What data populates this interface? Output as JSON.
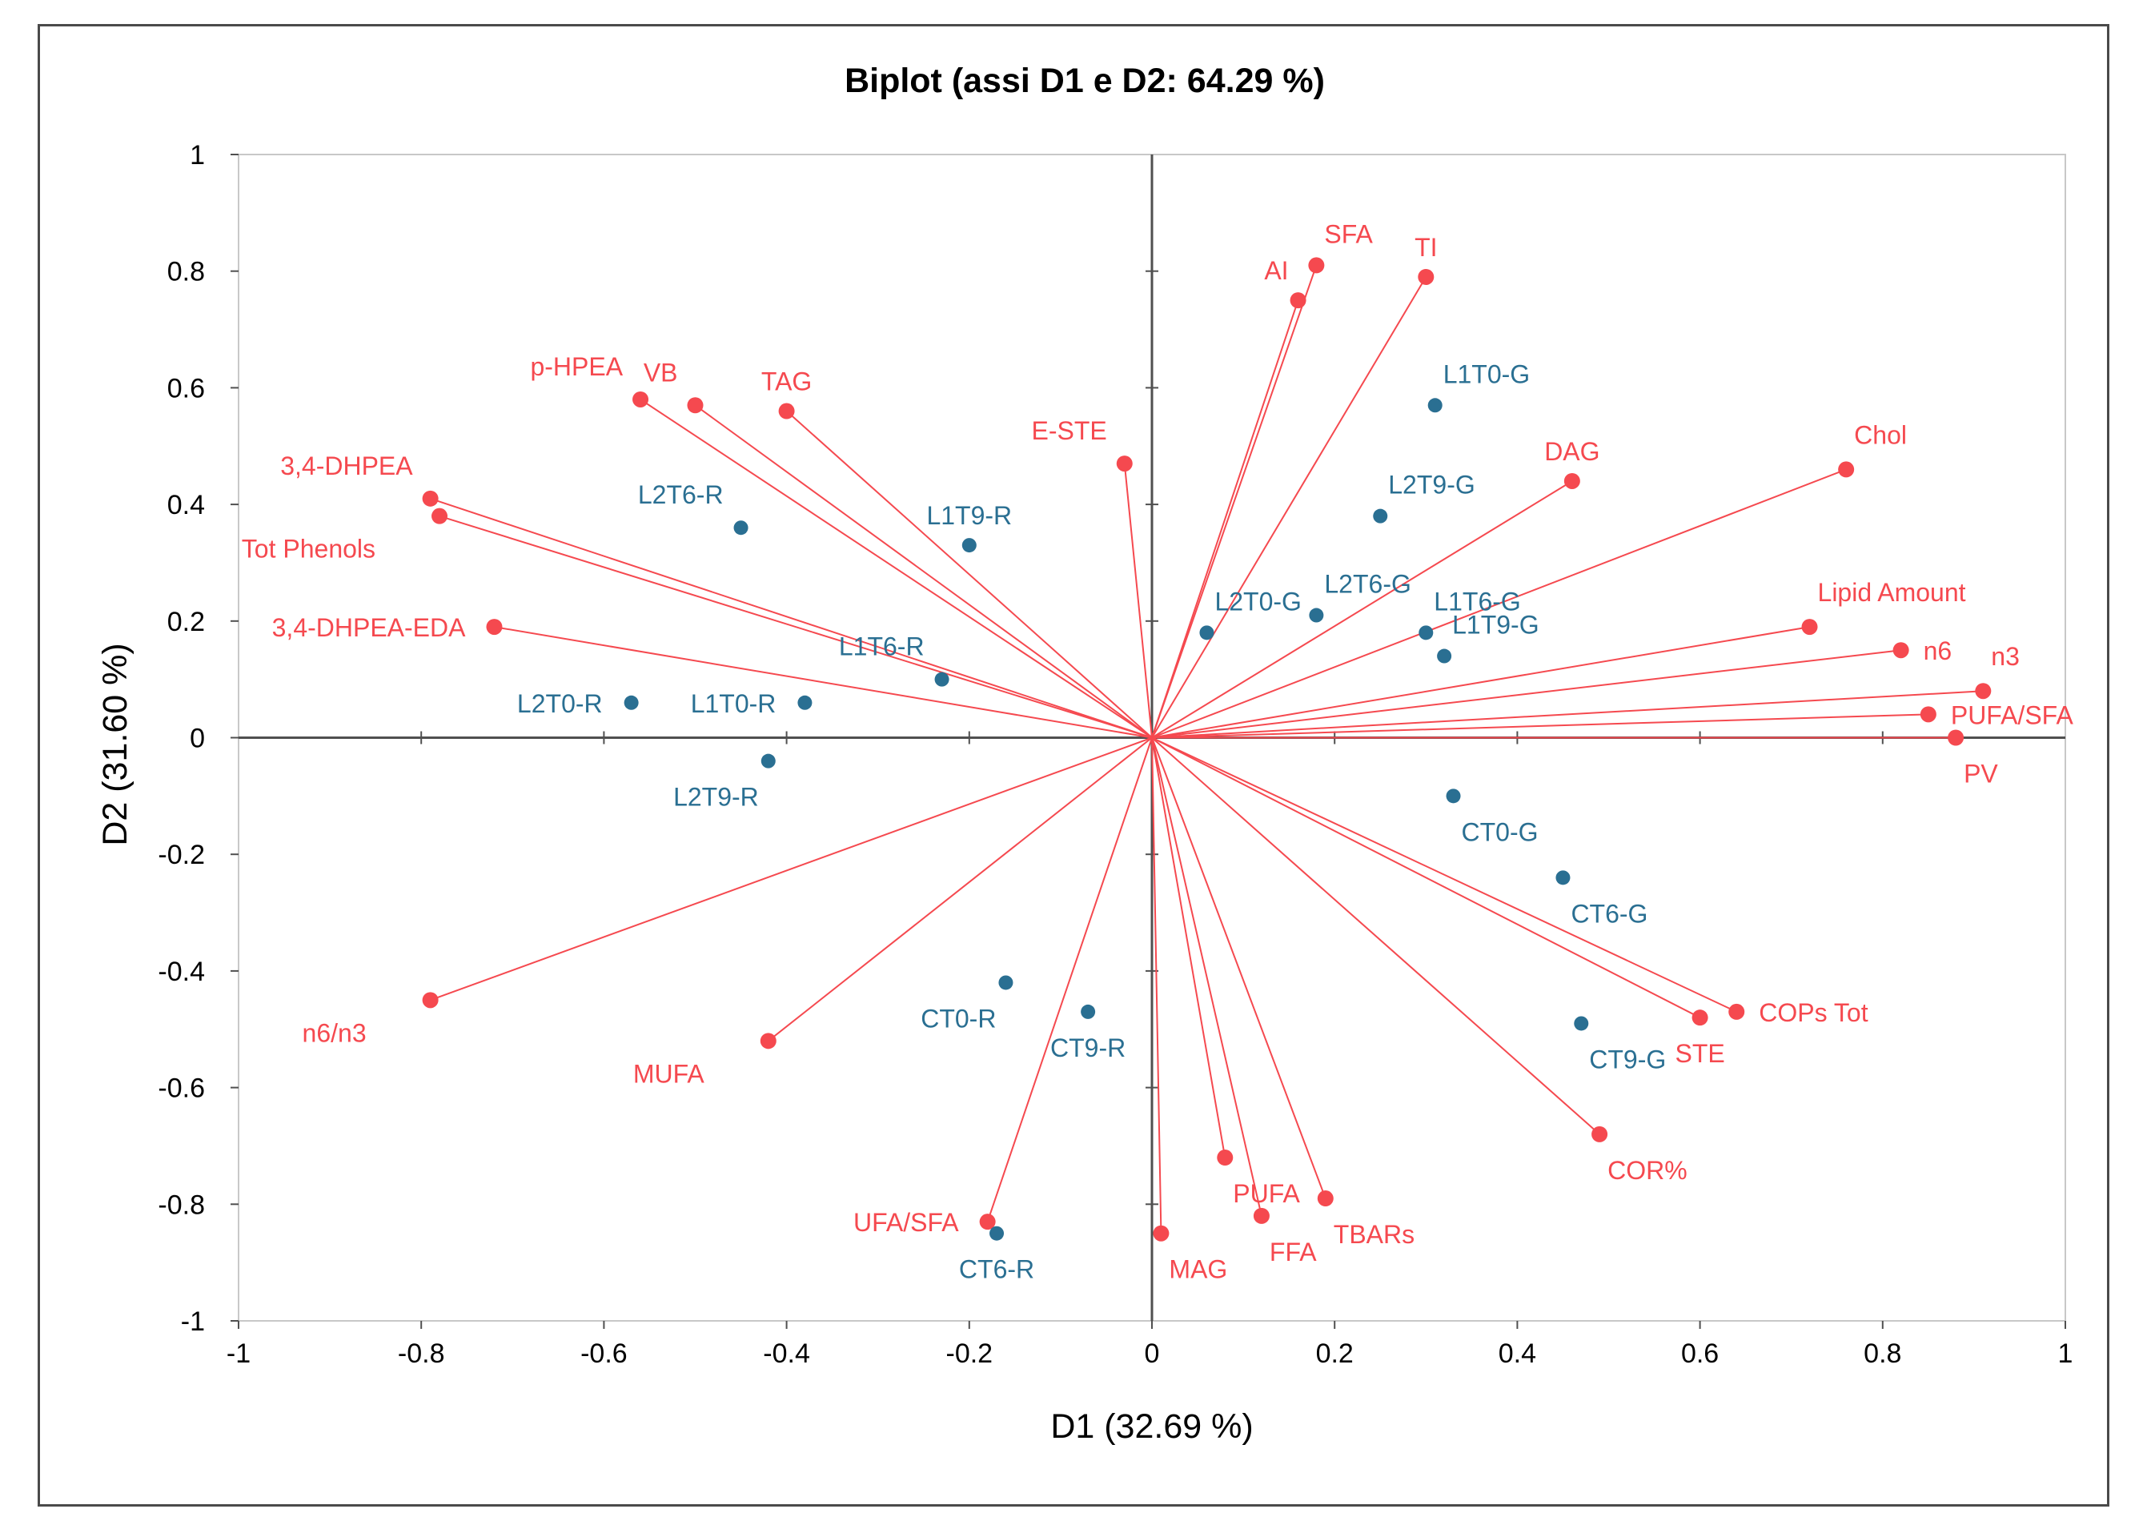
{
  "chart_data": {
    "type": "scatter",
    "title": "Biplot (assi D1 e D2: 64.29 %)",
    "xlabel": "D1 (32.69 %)",
    "ylabel": "D2 (31.60 %)",
    "xlim": [
      -1,
      1
    ],
    "ylim": [
      -1,
      1
    ],
    "xticks": [
      -1,
      -0.8,
      -0.6,
      -0.4,
      -0.2,
      0,
      0.2,
      0.4,
      0.6,
      0.8,
      1
    ],
    "yticks": [
      1,
      0.8,
      0.6,
      0.4,
      0.2,
      0,
      -0.2,
      -0.4,
      -0.6,
      -0.8,
      -1
    ],
    "xtick_labels": [
      "-1",
      "-0.8",
      "-0.6",
      "-0.4",
      "-0.2",
      "0",
      "0.2",
      "0.4",
      "0.6",
      "0.8",
      "1"
    ],
    "ytick_labels": [
      "1",
      "0.8",
      "0.6",
      "0.4",
      "0.2",
      "0",
      "-0.2",
      "-0.4",
      "-0.6",
      "-0.8",
      "-1"
    ],
    "grid": false,
    "colors": {
      "variables": "#f5494f",
      "observations": "#2a6f92",
      "axes": "#505050",
      "text": "#000000"
    },
    "series": [
      {
        "name": "Variables",
        "kind": "vectors",
        "points": [
          {
            "label": "SFA",
            "x": 0.18,
            "y": 0.81,
            "anchor": "above-right"
          },
          {
            "label": "AI",
            "x": 0.16,
            "y": 0.75,
            "anchor": "above-left"
          },
          {
            "label": "TI",
            "x": 0.3,
            "y": 0.79,
            "anchor": "above"
          },
          {
            "label": "p-HPEA",
            "x": -0.56,
            "y": 0.58,
            "anchor": "upper-left"
          },
          {
            "label": "VB",
            "x": -0.5,
            "y": 0.57,
            "anchor": "upper-left"
          },
          {
            "label": "TAG",
            "x": -0.4,
            "y": 0.56,
            "anchor": "above"
          },
          {
            "label": "E-STE",
            "x": -0.03,
            "y": 0.47,
            "anchor": "upper-left"
          },
          {
            "label": "DAG",
            "x": 0.46,
            "y": 0.44,
            "anchor": "above"
          },
          {
            "label": "Chol",
            "x": 0.76,
            "y": 0.46,
            "anchor": "upper-right"
          },
          {
            "label": "3,4-DHPEA",
            "x": -0.79,
            "y": 0.41,
            "anchor": "upper-left"
          },
          {
            "label": "Tot Phenols",
            "x": -0.78,
            "y": 0.38,
            "anchor": "lower-left"
          },
          {
            "label": "3,4-DHPEA-EDA",
            "x": -0.72,
            "y": 0.19,
            "anchor": "left"
          },
          {
            "label": "Lipid Amount",
            "x": 0.72,
            "y": 0.19,
            "anchor": "upper-right"
          },
          {
            "label": "n6",
            "x": 0.82,
            "y": 0.15,
            "anchor": "right"
          },
          {
            "label": "n3",
            "x": 0.91,
            "y": 0.08,
            "anchor": "upper-right"
          },
          {
            "label": "PUFA/SFA",
            "x": 0.85,
            "y": 0.04,
            "anchor": "right"
          },
          {
            "label": "PV",
            "x": 0.88,
            "y": 0.0,
            "anchor": "below-right"
          },
          {
            "label": "n6/n3",
            "x": -0.79,
            "y": -0.45,
            "anchor": "lower-left"
          },
          {
            "label": "MUFA",
            "x": -0.42,
            "y": -0.52,
            "anchor": "lower-left"
          },
          {
            "label": "UFA/SFA",
            "x": -0.18,
            "y": -0.83,
            "anchor": "left"
          },
          {
            "label": "MAG",
            "x": 0.01,
            "y": -0.85,
            "anchor": "below-right"
          },
          {
            "label": "PUFA",
            "x": 0.08,
            "y": -0.72,
            "anchor": "below-right"
          },
          {
            "label": "FFA",
            "x": 0.12,
            "y": -0.82,
            "anchor": "below-right"
          },
          {
            "label": "TBARs",
            "x": 0.19,
            "y": -0.79,
            "anchor": "below-right"
          },
          {
            "label": "COPs Tot",
            "x": 0.64,
            "y": -0.47,
            "anchor": "right"
          },
          {
            "label": "STE",
            "x": 0.6,
            "y": -0.48,
            "anchor": "below"
          },
          {
            "label": "COR%",
            "x": 0.49,
            "y": -0.68,
            "anchor": "below-right"
          }
        ]
      },
      {
        "name": "Observations",
        "kind": "points",
        "points": [
          {
            "label": "L1T0-G",
            "x": 0.31,
            "y": 0.57,
            "anchor": "above-right"
          },
          {
            "label": "L2T9-G",
            "x": 0.25,
            "y": 0.38,
            "anchor": "above-right"
          },
          {
            "label": "L2T6-G",
            "x": 0.18,
            "y": 0.21,
            "anchor": "above-right"
          },
          {
            "label": "L2T0-G",
            "x": 0.06,
            "y": 0.18,
            "anchor": "above-right"
          },
          {
            "label": "L1T6-G",
            "x": 0.3,
            "y": 0.18,
            "anchor": "above-right"
          },
          {
            "label": "L1T9-G",
            "x": 0.32,
            "y": 0.14,
            "anchor": "above-right"
          },
          {
            "label": "L2T6-R",
            "x": -0.45,
            "y": 0.36,
            "anchor": "upper-left"
          },
          {
            "label": "L1T9-R",
            "x": -0.2,
            "y": 0.33,
            "anchor": "above"
          },
          {
            "label": "L1T6-R",
            "x": -0.23,
            "y": 0.1,
            "anchor": "upper-left"
          },
          {
            "label": "L2T0-R",
            "x": -0.57,
            "y": 0.06,
            "anchor": "left"
          },
          {
            "label": "L1T0-R",
            "x": -0.38,
            "y": 0.06,
            "anchor": "left"
          },
          {
            "label": "L2T9-R",
            "x": -0.42,
            "y": -0.04,
            "anchor": "below-left"
          },
          {
            "label": "CT0-G",
            "x": 0.33,
            "y": -0.1,
            "anchor": "below-right"
          },
          {
            "label": "CT6-G",
            "x": 0.45,
            "y": -0.24,
            "anchor": "below-right"
          },
          {
            "label": "CT9-G",
            "x": 0.47,
            "y": -0.49,
            "anchor": "below-right"
          },
          {
            "label": "CT0-R",
            "x": -0.16,
            "y": -0.42,
            "anchor": "below-left"
          },
          {
            "label": "CT9-R",
            "x": -0.07,
            "y": -0.47,
            "anchor": "below"
          },
          {
            "label": "CT6-R",
            "x": -0.17,
            "y": -0.85,
            "anchor": "below"
          }
        ]
      }
    ]
  }
}
